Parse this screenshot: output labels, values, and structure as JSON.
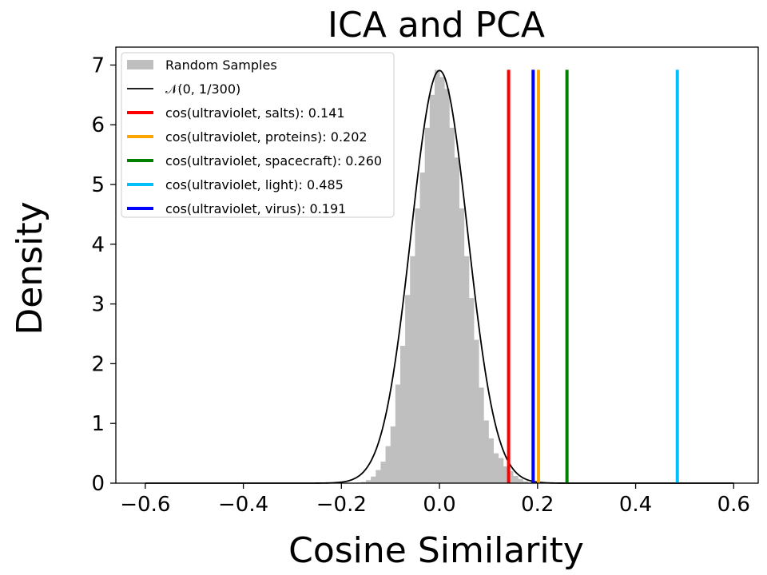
{
  "chart_data": {
    "type": "histogram",
    "title": "ICA and PCA",
    "xlabel": "Cosine Similarity",
    "ylabel": "Density",
    "xlim": [
      -0.66,
      0.65
    ],
    "ylim": [
      0,
      7.3
    ],
    "x_ticks": [
      -0.6,
      -0.4,
      -0.2,
      0.0,
      0.2,
      0.4,
      0.6
    ],
    "x_tick_labels": [
      "−0.6",
      "−0.4",
      "−0.2",
      "0.0",
      "0.2",
      "0.4",
      "0.6"
    ],
    "y_ticks": [
      0,
      1,
      2,
      3,
      4,
      5,
      6,
      7
    ],
    "y_tick_labels": [
      "0",
      "1",
      "2",
      "3",
      "4",
      "5",
      "6",
      "7"
    ],
    "grid": false,
    "legend_position": "top-left",
    "histogram": {
      "name": "Random Samples",
      "color": "#bfbfbf",
      "bins": [
        {
          "x0": -0.17,
          "x1": -0.16,
          "density": 0.01
        },
        {
          "x0": -0.16,
          "x1": -0.15,
          "density": 0.02
        },
        {
          "x0": -0.15,
          "x1": -0.14,
          "density": 0.05
        },
        {
          "x0": -0.14,
          "x1": -0.13,
          "density": 0.11
        },
        {
          "x0": -0.13,
          "x1": -0.12,
          "density": 0.22
        },
        {
          "x0": -0.12,
          "x1": -0.11,
          "density": 0.36
        },
        {
          "x0": -0.11,
          "x1": -0.1,
          "density": 0.62
        },
        {
          "x0": -0.1,
          "x1": -0.09,
          "density": 0.95
        },
        {
          "x0": -0.09,
          "x1": -0.08,
          "density": 1.65
        },
        {
          "x0": -0.08,
          "x1": -0.07,
          "density": 2.3
        },
        {
          "x0": -0.07,
          "x1": -0.06,
          "density": 3.15
        },
        {
          "x0": -0.06,
          "x1": -0.05,
          "density": 3.8
        },
        {
          "x0": -0.05,
          "x1": -0.04,
          "density": 4.6
        },
        {
          "x0": -0.04,
          "x1": -0.03,
          "density": 5.2
        },
        {
          "x0": -0.03,
          "x1": -0.02,
          "density": 5.95
        },
        {
          "x0": -0.02,
          "x1": -0.01,
          "density": 6.5
        },
        {
          "x0": -0.01,
          "x1": 0.0,
          "density": 6.92
        },
        {
          "x0": 0.0,
          "x1": 0.01,
          "density": 6.8
        },
        {
          "x0": 0.01,
          "x1": 0.02,
          "density": 6.6
        },
        {
          "x0": 0.02,
          "x1": 0.03,
          "density": 5.95
        },
        {
          "x0": 0.03,
          "x1": 0.04,
          "density": 5.45
        },
        {
          "x0": 0.04,
          "x1": 0.05,
          "density": 4.6
        },
        {
          "x0": 0.05,
          "x1": 0.06,
          "density": 3.8
        },
        {
          "x0": 0.06,
          "x1": 0.07,
          "density": 3.1
        },
        {
          "x0": 0.07,
          "x1": 0.08,
          "density": 2.4
        },
        {
          "x0": 0.08,
          "x1": 0.09,
          "density": 1.6
        },
        {
          "x0": 0.09,
          "x1": 0.1,
          "density": 1.05
        },
        {
          "x0": 0.1,
          "x1": 0.11,
          "density": 0.75
        },
        {
          "x0": 0.11,
          "x1": 0.12,
          "density": 0.5
        },
        {
          "x0": 0.12,
          "x1": 0.13,
          "density": 0.42
        },
        {
          "x0": 0.13,
          "x1": 0.14,
          "density": 0.28
        },
        {
          "x0": 0.14,
          "x1": 0.15,
          "density": 0.2
        },
        {
          "x0": 0.15,
          "x1": 0.16,
          "density": 0.12
        },
        {
          "x0": 0.16,
          "x1": 0.17,
          "density": 0.07
        },
        {
          "x0": 0.17,
          "x1": 0.18,
          "density": 0.03
        },
        {
          "x0": 0.18,
          "x1": 0.19,
          "density": 0.01
        }
      ]
    },
    "normal_curve": {
      "name": "𝒩(0, 1/300)",
      "mean": 0,
      "variance": 0.0033333,
      "color": "#000000"
    },
    "vlines": [
      {
        "name": "cos(ultraviolet, salts): 0.141",
        "x": 0.141,
        "color": "#ff0000"
      },
      {
        "name": "cos(ultraviolet, proteins): 0.202",
        "x": 0.202,
        "color": "#ffa500"
      },
      {
        "name": "cos(ultraviolet, spacecraft): 0.260",
        "x": 0.26,
        "color": "#008000"
      },
      {
        "name": "cos(ultraviolet, light): 0.485",
        "x": 0.485,
        "color": "#00bfff"
      },
      {
        "name": "cos(ultraviolet, virus): 0.191",
        "x": 0.191,
        "color": "#0000ff"
      }
    ],
    "vline_top": 6.92
  }
}
